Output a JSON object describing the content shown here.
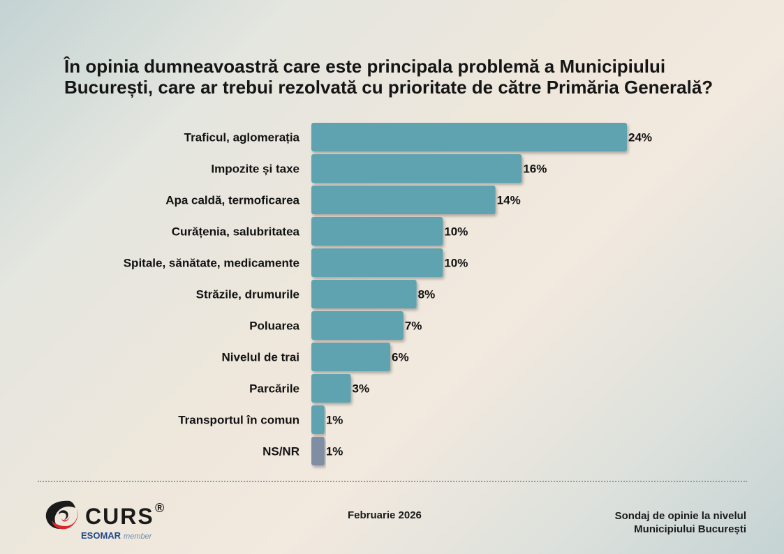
{
  "chart_data": {
    "type": "bar",
    "orientation": "horizontal",
    "title": "În opinia dumneavoastră care este principala problemă a Municipiului București, care ar trebui rezolvată cu prioritate de către Primăria Generală?",
    "categories": [
      "Traficul, aglomerația",
      "Impozite și taxe",
      "Apa caldă, termoficarea",
      "Curățenia, salubritatea",
      "Spitale, sănătate, medicamente",
      "Străzile, drumurile",
      "Poluarea",
      "Nivelul de trai",
      "Parcările",
      "Transportul în comun",
      "NS/NR"
    ],
    "values": [
      24,
      16,
      14,
      10,
      10,
      8,
      7,
      6,
      3,
      1,
      1
    ],
    "value_labels": [
      "24%",
      "16%",
      "14%",
      "10%",
      "10%",
      "8%",
      "7%",
      "6%",
      "3%",
      "1%",
      "1%"
    ],
    "unit": "%",
    "colors": [
      "#5fa3b0",
      "#5fa3b0",
      "#5fa3b0",
      "#5fa3b0",
      "#5fa3b0",
      "#5fa3b0",
      "#5fa3b0",
      "#5fa3b0",
      "#5fa3b0",
      "#5fa3b0",
      "#7f8ea3"
    ],
    "xlim": [
      0,
      24
    ],
    "grid": false,
    "legend": "none"
  },
  "footer": {
    "date": "Februarie 2026",
    "source_line1": "Sondaj de opinie la nivelul",
    "source_line2": "Municipiului București"
  },
  "logo": {
    "name": "CURS",
    "registered": "®",
    "sub_left": "ESOMAR",
    "sub_right": "member",
    "colors": {
      "swoosh_dark": "#1a1a1a",
      "swoosh_red": "#d8262b",
      "esomar_blue": "#1f4b8c",
      "member_gray": "#6d8fb0"
    }
  }
}
